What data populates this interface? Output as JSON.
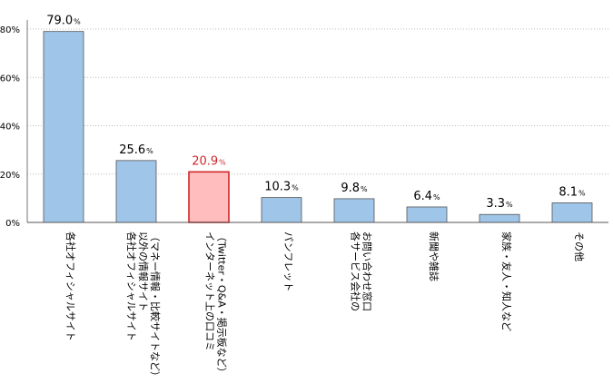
{
  "chart_data": {
    "type": "bar",
    "categories": [
      [
        "各社オフィシャルサイト"
      ],
      [
        "各社オフィシャルサイト",
        "以外の情報サイト",
        "（マネー情報・比較サイトなど）"
      ],
      [
        "インターネット上の口コミ",
        "（Twitter・Q&A・掲示板など）"
      ],
      [
        "パンフレット"
      ],
      [
        "各サービス会社の",
        "お問い合わせ窓口"
      ],
      [
        "新聞や雑誌"
      ],
      [
        "家族・友人・知人など"
      ],
      [
        "その他"
      ]
    ],
    "values": [
      79.0,
      25.6,
      20.9,
      10.3,
      9.8,
      6.4,
      3.3,
      8.1
    ],
    "value_labels": [
      "79.0",
      "25.6",
      "20.9",
      "10.3",
      "9.8",
      "6.4",
      "3.3",
      "8.1"
    ],
    "value_unit": "%",
    "highlight_index": 2,
    "colors": {
      "bar_fill": "#9fc5e8",
      "bar_stroke": "#555555",
      "highlight_fill": "#ffbdbd",
      "highlight_stroke": "#d0262a",
      "highlight_text": "#d0262a",
      "grid": "#bbbbbb"
    },
    "ylim": [
      0,
      80
    ],
    "yticks": [
      0,
      20,
      40,
      60,
      80
    ],
    "ytick_labels": [
      "0%",
      "20%",
      "40%",
      "60%",
      "80%"
    ],
    "grid": true,
    "title": "",
    "xlabel": "",
    "ylabel": ""
  }
}
